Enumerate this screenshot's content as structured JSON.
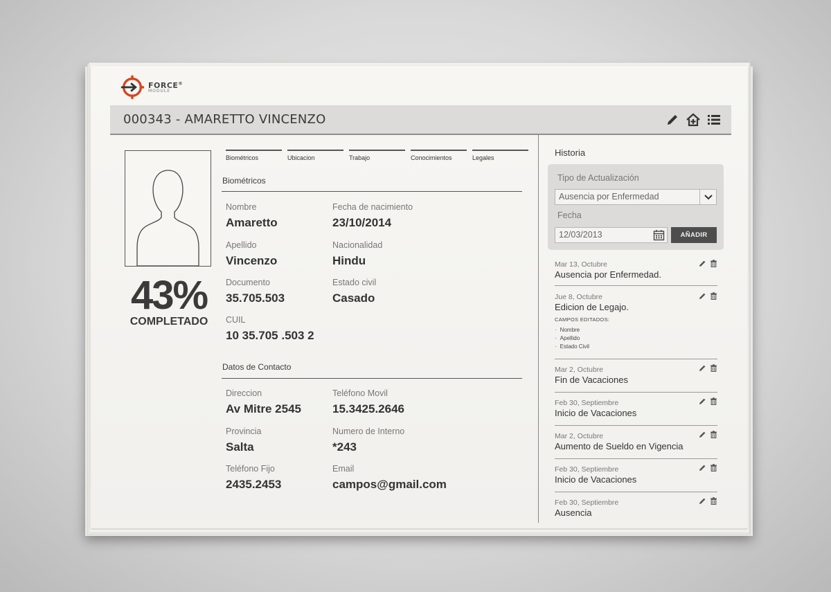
{
  "logo": {
    "name": "FORCE",
    "reg": "®",
    "sub": "MODULE"
  },
  "header": {
    "title": "000343 - AMARETTO VINCENZO",
    "icons": [
      "pencil-icon",
      "home-add-icon",
      "list-icon"
    ]
  },
  "profile": {
    "percent": "43%",
    "percent_label": "COMPLETADO"
  },
  "tabs": [
    "Biométricos",
    "Ubicacion",
    "Trabajo",
    "Conocimientos",
    "Legales"
  ],
  "biometricos": {
    "title": "Biométricos",
    "fields": [
      {
        "label": "Nombre",
        "value": "Amaretto"
      },
      {
        "label": "Fecha de nacimiento",
        "value": "23/10/2014"
      },
      {
        "label": "Apellido",
        "value": "Vincenzo"
      },
      {
        "label": "Nacionalidad",
        "value": "Hindu"
      },
      {
        "label": "Documento",
        "value": "35.705.503"
      },
      {
        "label": "Estado civil",
        "value": "Casado"
      },
      {
        "label": "CUIL",
        "value": "10 35.705 .503 2"
      }
    ]
  },
  "contacto": {
    "title": "Datos de Contacto",
    "fields": [
      {
        "label": "Direccion",
        "value": "Av Mitre 2545"
      },
      {
        "label": "Teléfono Movil",
        "value": "15.3425.2646"
      },
      {
        "label": "Provincia",
        "value": "Salta"
      },
      {
        "label": "Numero de Interno",
        "value": "*243"
      },
      {
        "label": "Teléfono Fijo",
        "value": "2435.2453"
      },
      {
        "label": "Email",
        "value": "campos@gmail.com"
      }
    ]
  },
  "historia": {
    "title": "Historia",
    "form": {
      "tipo_label": "Tipo de Actualización",
      "tipo_value": "Ausencia por Enfermedad",
      "fecha_label": "Fecha",
      "fecha_value": "12/03/2013",
      "add_label": "AÑADIR"
    },
    "items": [
      {
        "date": "Mar 13, Octubre",
        "title": "Ausencia por Enfermedad."
      },
      {
        "date": "Jue 8, Octubre",
        "title": "Edicion de Legajo.",
        "sub": "CAMPOS EDITADOS:",
        "fields": [
          "Nombre",
          "Apellido",
          "Estado Civil"
        ]
      },
      {
        "date": "Mar 2, Octubre",
        "title": "Fin de Vacaciones"
      },
      {
        "date": "Feb 30, Septiembre",
        "title": "Inicio de Vacaciones"
      },
      {
        "date": "Mar 2, Octubre",
        "title": "Aumento de Sueldo en Vigencia"
      },
      {
        "date": "Feb 30, Septiembre",
        "title": "Inicio de Vacaciones"
      },
      {
        "date": "Feb 30, Septiembre",
        "title": "Ausencia"
      }
    ]
  },
  "colors": {
    "logo_accent": "#d4461f",
    "header_bg": "#dcdbd9",
    "button_bg": "#4d4d4d"
  }
}
